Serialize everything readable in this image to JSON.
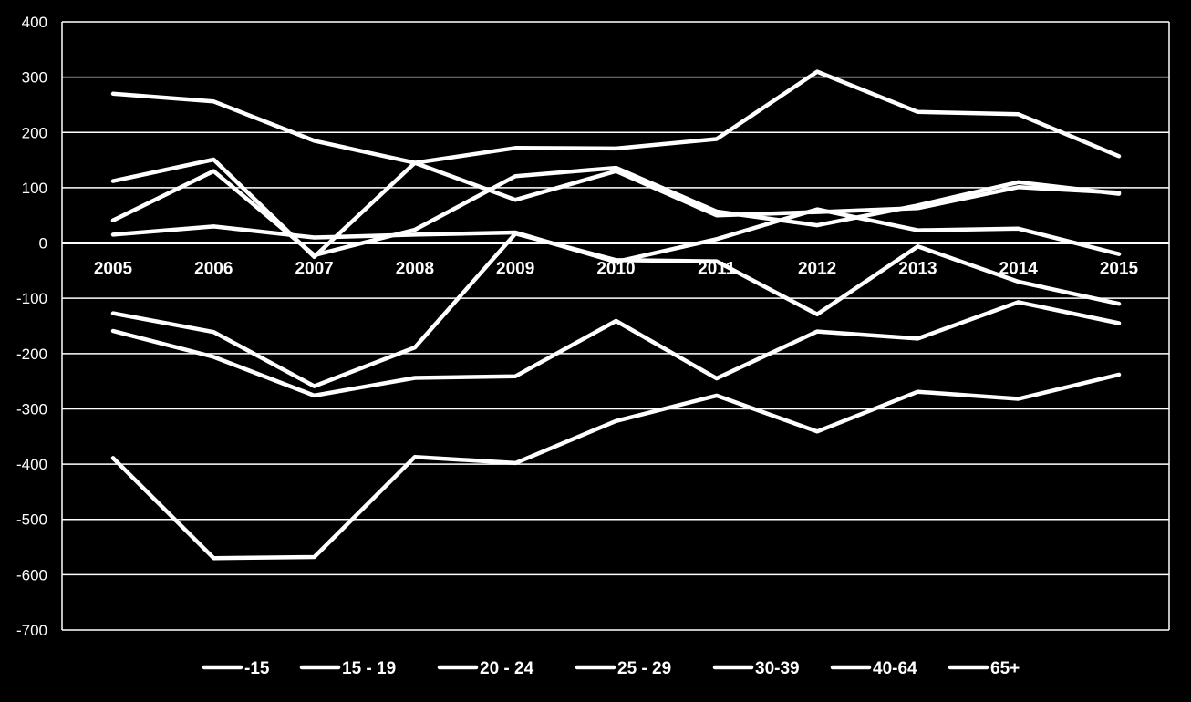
{
  "chart_data": {
    "type": "line",
    "title": "",
    "xlabel": "",
    "ylabel": "",
    "ylim": [
      -700,
      400
    ],
    "yticks": [
      400,
      300,
      200,
      100,
      0,
      -100,
      -200,
      -300,
      -400,
      -500,
      -600,
      -700
    ],
    "grid": true,
    "legend_position": "bottom",
    "background_color": "#000000",
    "line_color": "#ffffff",
    "categories": [
      "2005",
      "2006",
      "2007",
      "2008",
      "2009",
      "2010",
      "2011",
      "2012",
      "2013",
      "2014",
      "2015"
    ],
    "series": [
      {
        "name": "-15",
        "values": [
          270,
          256,
          185,
          145,
          78,
          130,
          50,
          56,
          63,
          101,
          91
        ]
      },
      {
        "name": "15 - 19",
        "values": [
          112,
          151,
          -25,
          145,
          172,
          171,
          188,
          310,
          237,
          233,
          157
        ]
      },
      {
        "name": "20 - 24",
        "values": [
          41,
          130,
          -22,
          24,
          121,
          136,
          57,
          32,
          68,
          110,
          89
        ]
      },
      {
        "name": "25 - 29",
        "values": [
          15,
          30,
          10,
          15,
          19,
          -34,
          7,
          61,
          23,
          26,
          -20
        ]
      },
      {
        "name": "30-39",
        "values": [
          -127,
          -161,
          -259,
          -189,
          17,
          -31,
          -33,
          -129,
          -6,
          -70,
          -110
        ]
      },
      {
        "name": "40-64",
        "values": [
          -159,
          -206,
          -276,
          -244,
          -241,
          -141,
          -245,
          -160,
          -173,
          -107,
          -145
        ]
      },
      {
        "name": "65+",
        "values": [
          -389,
          -570,
          -568,
          -387,
          -398,
          -322,
          -276,
          -341,
          -269,
          -282,
          -238
        ]
      }
    ]
  }
}
